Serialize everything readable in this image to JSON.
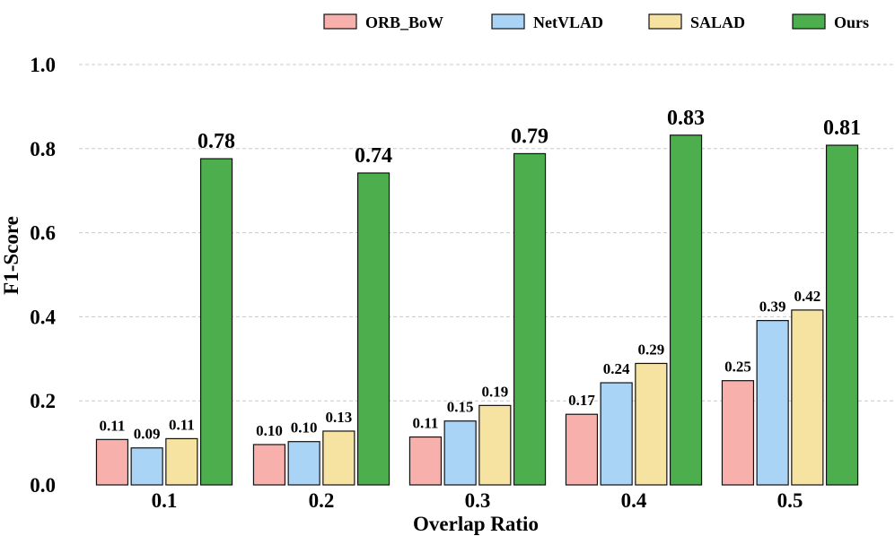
{
  "chart_data": {
    "type": "bar",
    "categories": [
      "0.1",
      "0.2",
      "0.3",
      "0.4",
      "0.5"
    ],
    "series": [
      {
        "name": "ORB_BoW",
        "color": "#f7b0ab",
        "values": [
          0.108,
          0.096,
          0.114,
          0.168,
          0.248
        ],
        "labels": [
          "0.11",
          "0.10",
          "0.11",
          "0.17",
          "0.25"
        ]
      },
      {
        "name": "NetVLAD",
        "color": "#a9d4f5",
        "values": [
          0.088,
          0.103,
          0.152,
          0.243,
          0.391
        ],
        "labels": [
          "0.09",
          "0.10",
          "0.15",
          "0.24",
          "0.39"
        ]
      },
      {
        "name": "SALAD",
        "color": "#f6e3a1",
        "values": [
          0.11,
          0.128,
          0.189,
          0.289,
          0.416
        ],
        "labels": [
          "0.11",
          "0.13",
          "0.19",
          "0.29",
          "0.42"
        ]
      },
      {
        "name": "Ours",
        "color": "#4cae4c",
        "values": [
          0.776,
          0.742,
          0.788,
          0.832,
          0.808
        ],
        "labels": [
          "0.78",
          "0.74",
          "0.79",
          "0.83",
          "0.81"
        ]
      }
    ],
    "title": "",
    "xlabel": "Overlap Ratio",
    "ylabel": "F1-Score",
    "ylim": [
      0,
      1.0
    ],
    "yticks": [
      "0.0",
      "0.2",
      "0.4",
      "0.6",
      "0.8",
      "1.0"
    ],
    "grid": "horizontal dashed",
    "legend_position": "top-right"
  }
}
